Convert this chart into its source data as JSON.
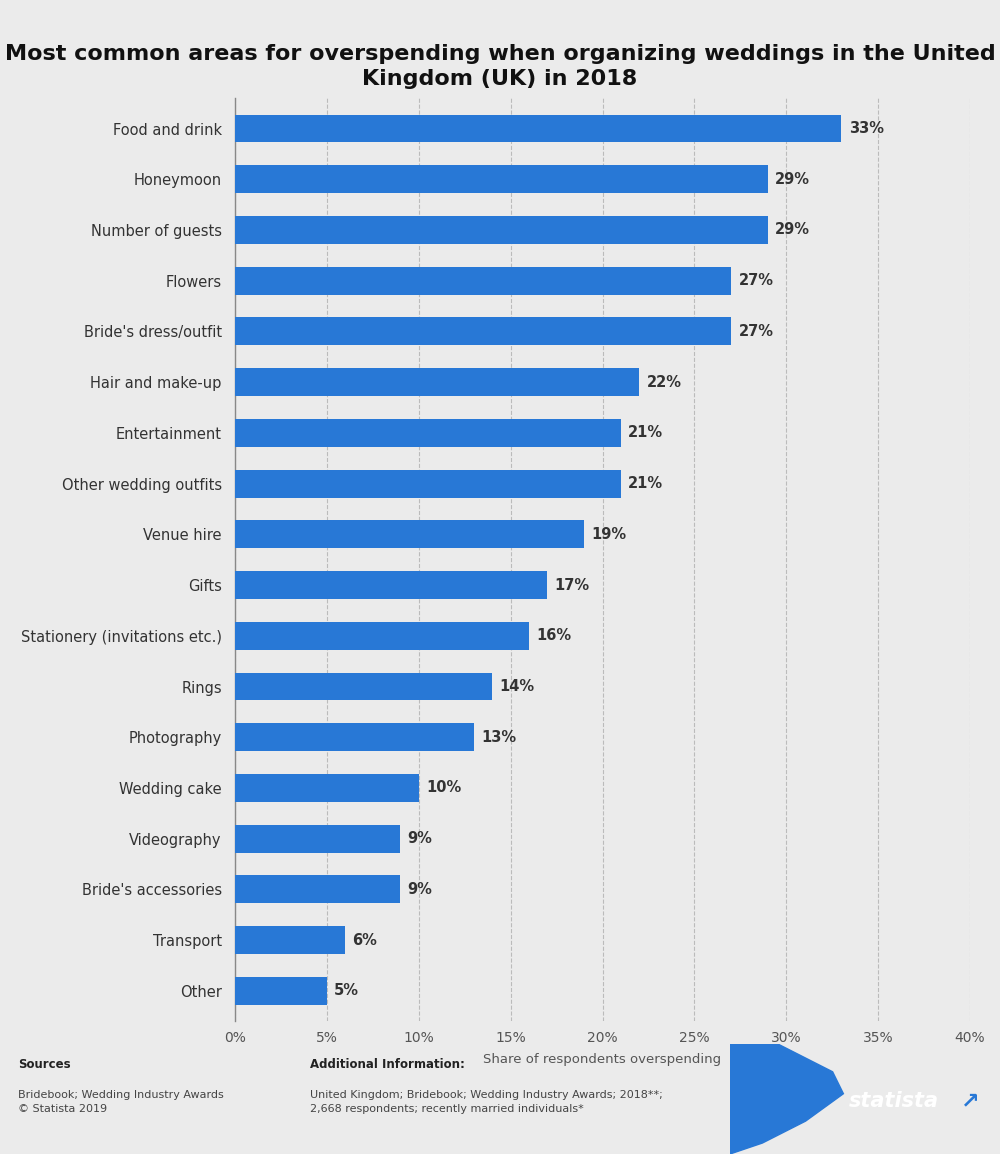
{
  "title": "Most common areas for overspending when organizing weddings in the United\nKingdom (UK) in 2018",
  "categories": [
    "Food and drink",
    "Honeymoon",
    "Number of guests",
    "Flowers",
    "Bride's dress/outfit",
    "Hair and make-up",
    "Entertainment",
    "Other wedding outfits",
    "Venue hire",
    "Gifts",
    "Stationery (invitations etc.)",
    "Rings",
    "Photography",
    "Wedding cake",
    "Videography",
    "Bride's accessories",
    "Transport",
    "Other"
  ],
  "values": [
    33,
    29,
    29,
    27,
    27,
    22,
    21,
    21,
    19,
    17,
    16,
    14,
    13,
    10,
    9,
    9,
    6,
    5
  ],
  "bar_color": "#2878d6",
  "xlabel": "Share of respondents overspending",
  "xlim": [
    0,
    40
  ],
  "xticks": [
    0,
    5,
    10,
    15,
    20,
    25,
    30,
    35,
    40
  ],
  "xtick_labels": [
    "0%",
    "5%",
    "10%",
    "15%",
    "20%",
    "25%",
    "30%",
    "35%",
    "40%"
  ],
  "background_color": "#ebebeb",
  "plot_background": "#ebebeb",
  "title_fontsize": 16,
  "label_fontsize": 10.5,
  "value_fontsize": 10.5,
  "tick_fontsize": 10,
  "statista_dark": "#1b2a3b",
  "statista_blue": "#2878d6",
  "footer_bg": "#f5f5f5"
}
